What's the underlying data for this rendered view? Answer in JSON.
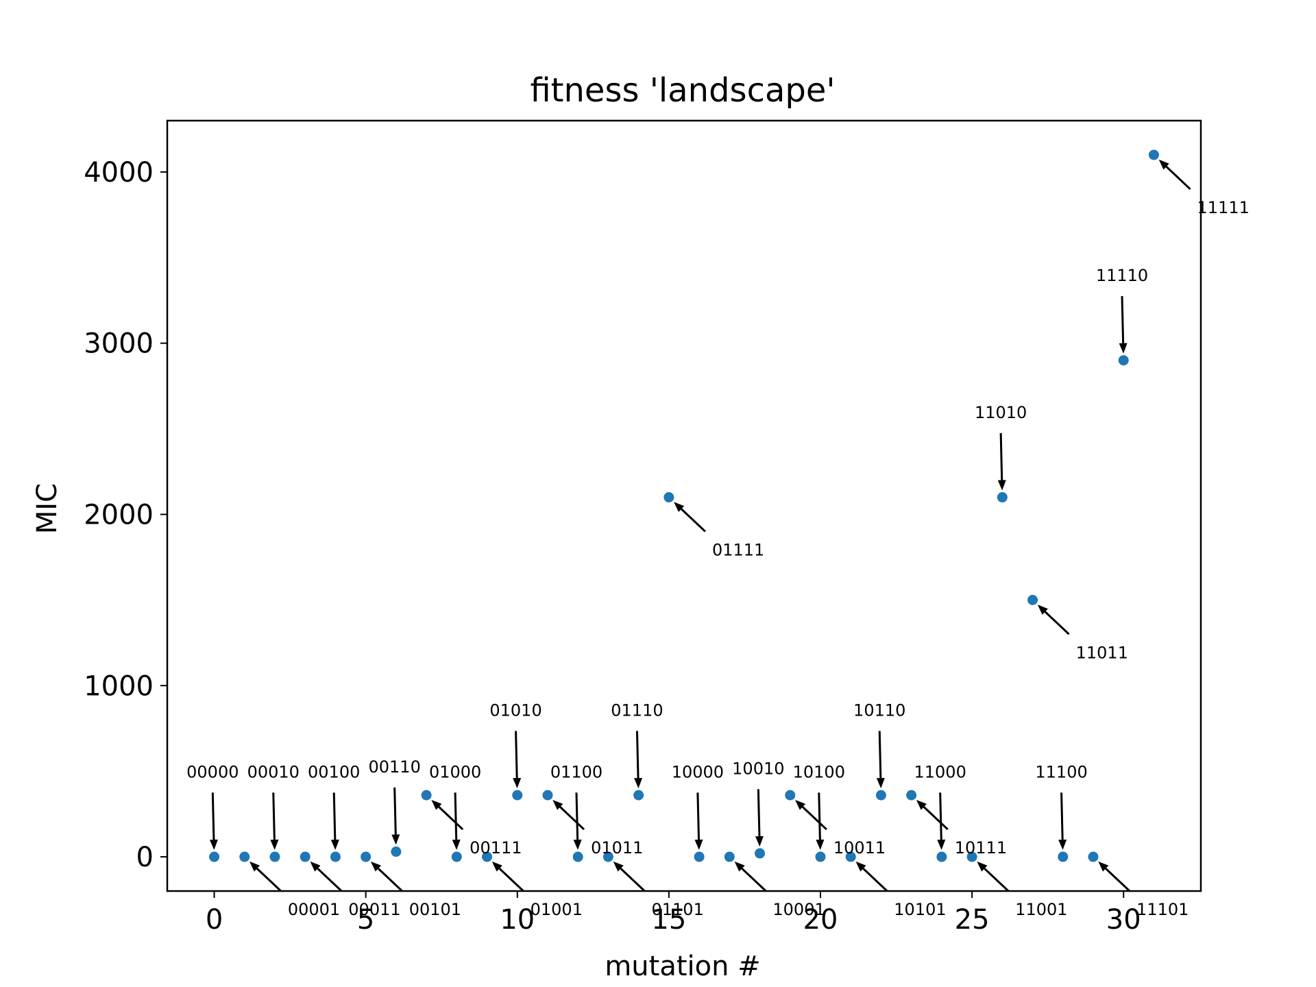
{
  "chart_data": {
    "type": "scatter",
    "title": "fitness 'landscape'",
    "xlabel": "mutation #",
    "ylabel": "MIC",
    "xlim": [
      -1.55,
      32.55
    ],
    "ylim": [
      -200,
      4300
    ],
    "xticks": [
      0,
      5,
      10,
      15,
      20,
      25,
      30
    ],
    "yticks": [
      0,
      1000,
      2000,
      3000,
      4000
    ],
    "grid": false,
    "point_color": "#1f77b4",
    "series": [
      {
        "x": [
          0,
          1,
          2,
          3,
          4,
          5,
          6,
          7,
          8,
          9,
          10,
          11,
          12,
          13,
          14,
          15,
          16,
          17,
          18,
          19,
          20,
          21,
          22,
          23,
          24,
          25,
          26,
          27,
          28,
          29,
          30,
          31
        ],
        "y": [
          0,
          0,
          0,
          0,
          0,
          0,
          30,
          360,
          0,
          0,
          360,
          360,
          0,
          0,
          360,
          2100,
          0,
          0,
          20,
          360,
          0,
          0,
          360,
          360,
          0,
          0,
          2100,
          1500,
          0,
          0,
          2900,
          4100
        ],
        "labels": [
          "00000",
          "00001",
          "00010",
          "00011",
          "00100",
          "00101",
          "00110",
          "00111",
          "01000",
          "01001",
          "01010",
          "01011",
          "01100",
          "01101",
          "01110",
          "01111",
          "10000",
          "10001",
          "10010",
          "10011",
          "10100",
          "10101",
          "10110",
          "10111",
          "11000",
          "11001",
          "11010",
          "11011",
          "11100",
          "11101",
          "11110",
          "11111"
        ]
      }
    ],
    "annotations": [
      {
        "i": 0,
        "text": "00000",
        "at": [
          0,
          0
        ],
        "from": [
          -0.05,
          375
        ],
        "pos": "above"
      },
      {
        "i": 1,
        "text": "00001",
        "at": [
          1,
          0
        ],
        "from": [
          2.2,
          -200
        ],
        "pos": "below-right"
      },
      {
        "i": 2,
        "text": "00010",
        "at": [
          2,
          0
        ],
        "from": [
          1.95,
          375
        ],
        "pos": "above"
      },
      {
        "i": 3,
        "text": "00011",
        "at": [
          3,
          0
        ],
        "from": [
          4.2,
          -200
        ],
        "pos": "below-right"
      },
      {
        "i": 4,
        "text": "00100",
        "at": [
          4,
          0
        ],
        "from": [
          3.95,
          375
        ],
        "pos": "above"
      },
      {
        "i": 5,
        "text": "00101",
        "at": [
          5,
          0
        ],
        "from": [
          6.2,
          -200
        ],
        "pos": "below-right"
      },
      {
        "i": 6,
        "text": "00110",
        "at": [
          6,
          30
        ],
        "from": [
          5.95,
          405
        ],
        "pos": "above"
      },
      {
        "i": 7,
        "text": "00111",
        "at": [
          7,
          360
        ],
        "from": [
          8.2,
          160
        ],
        "pos": "below-right"
      },
      {
        "i": 8,
        "text": "01000",
        "at": [
          8,
          0
        ],
        "from": [
          7.95,
          375
        ],
        "pos": "above"
      },
      {
        "i": 9,
        "text": "01001",
        "at": [
          9,
          0
        ],
        "from": [
          10.2,
          -200
        ],
        "pos": "below-right"
      },
      {
        "i": 10,
        "text": "01010",
        "at": [
          10,
          360
        ],
        "from": [
          9.95,
          735
        ],
        "pos": "above"
      },
      {
        "i": 11,
        "text": "01011",
        "at": [
          11,
          360
        ],
        "from": [
          12.2,
          160
        ],
        "pos": "below-right"
      },
      {
        "i": 12,
        "text": "01100",
        "at": [
          12,
          0
        ],
        "from": [
          11.95,
          375
        ],
        "pos": "above"
      },
      {
        "i": 13,
        "text": "01101",
        "at": [
          13,
          0
        ],
        "from": [
          14.2,
          -200
        ],
        "pos": "below-right"
      },
      {
        "i": 14,
        "text": "01110",
        "at": [
          14,
          360
        ],
        "from": [
          13.95,
          735
        ],
        "pos": "above"
      },
      {
        "i": 15,
        "text": "01111",
        "at": [
          15,
          2100
        ],
        "from": [
          16.2,
          1900
        ],
        "pos": "below-right"
      },
      {
        "i": 16,
        "text": "10000",
        "at": [
          16,
          0
        ],
        "from": [
          15.95,
          375
        ],
        "pos": "above"
      },
      {
        "i": 17,
        "text": "10001",
        "at": [
          17,
          0
        ],
        "from": [
          18.2,
          -200
        ],
        "pos": "below-right"
      },
      {
        "i": 18,
        "text": "10010",
        "at": [
          18,
          20
        ],
        "from": [
          17.95,
          395
        ],
        "pos": "above"
      },
      {
        "i": 19,
        "text": "10011",
        "at": [
          19,
          360
        ],
        "from": [
          20.2,
          160
        ],
        "pos": "below-right"
      },
      {
        "i": 20,
        "text": "10100",
        "at": [
          20,
          0
        ],
        "from": [
          19.95,
          375
        ],
        "pos": "above"
      },
      {
        "i": 21,
        "text": "10101",
        "at": [
          21,
          0
        ],
        "from": [
          22.2,
          -200
        ],
        "pos": "below-right"
      },
      {
        "i": 22,
        "text": "10110",
        "at": [
          22,
          360
        ],
        "from": [
          21.95,
          735
        ],
        "pos": "above"
      },
      {
        "i": 23,
        "text": "10111",
        "at": [
          23,
          360
        ],
        "from": [
          24.2,
          160
        ],
        "pos": "below-right"
      },
      {
        "i": 24,
        "text": "11000",
        "at": [
          24,
          0
        ],
        "from": [
          23.95,
          375
        ],
        "pos": "above"
      },
      {
        "i": 25,
        "text": "11001",
        "at": [
          25,
          0
        ],
        "from": [
          26.2,
          -200
        ],
        "pos": "below-right"
      },
      {
        "i": 26,
        "text": "11010",
        "at": [
          26,
          2100
        ],
        "from": [
          25.95,
          2475
        ],
        "pos": "above"
      },
      {
        "i": 27,
        "text": "11011",
        "at": [
          27,
          1500
        ],
        "from": [
          28.2,
          1300
        ],
        "pos": "below-right"
      },
      {
        "i": 28,
        "text": "11100",
        "at": [
          28,
          0
        ],
        "from": [
          27.95,
          375
        ],
        "pos": "above"
      },
      {
        "i": 29,
        "text": "11101",
        "at": [
          29,
          0
        ],
        "from": [
          30.2,
          -200
        ],
        "pos": "below-right"
      },
      {
        "i": 30,
        "text": "11110",
        "at": [
          30,
          2900
        ],
        "from": [
          29.95,
          3275
        ],
        "pos": "above"
      },
      {
        "i": 31,
        "text": "11111",
        "at": [
          31,
          4100
        ],
        "from": [
          32.2,
          3900
        ],
        "pos": "below-right"
      }
    ]
  }
}
